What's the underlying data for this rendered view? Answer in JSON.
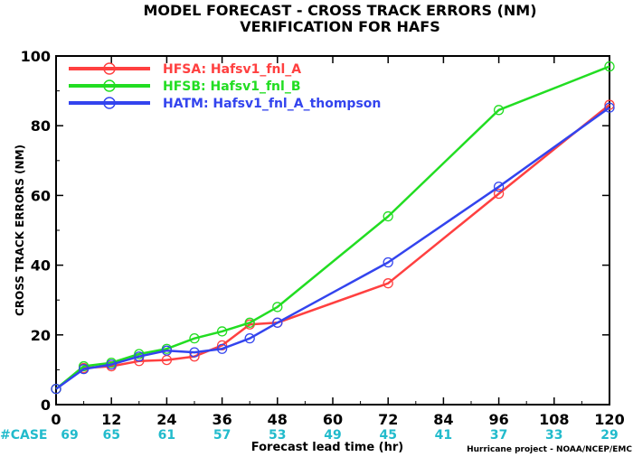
{
  "chart_data": {
    "type": "line",
    "title": "MODEL FORECAST - CROSS TRACK ERRORS (NM)",
    "subtitle": "VERIFICATION FOR HAFS",
    "xlabel": "Forecast lead time (hr)",
    "ylabel": "CROSS TRACK ERRORS (NM)",
    "xlim": [
      0,
      120
    ],
    "ylim": [
      0,
      100
    ],
    "x_ticks": [
      0,
      12,
      24,
      36,
      48,
      60,
      72,
      84,
      96,
      108,
      120
    ],
    "y_ticks": [
      0,
      20,
      40,
      60,
      80,
      100
    ],
    "grid": false,
    "legend_position": "top-left",
    "series": [
      {
        "name": "HFSA: Hafsv1_fnl_A",
        "color": "#ff4040",
        "x": [
          0,
          6,
          12,
          18,
          24,
          30,
          36,
          42,
          48,
          72,
          96,
          120
        ],
        "y": [
          4.5,
          10.5,
          11,
          12.5,
          12.8,
          13.8,
          17,
          23,
          23.5,
          34.8,
          60.5,
          86
        ]
      },
      {
        "name": "HFSB: Hafsv1_fnl_B",
        "color": "#22dd22",
        "x": [
          0,
          6,
          12,
          18,
          24,
          30,
          36,
          42,
          48,
          72,
          96,
          120
        ],
        "y": [
          4.5,
          11,
          12,
          14.5,
          16,
          19,
          21,
          23.5,
          28,
          54,
          84.5,
          97
        ]
      },
      {
        "name": "HATM: Hafsv1_fnl_A_thompson",
        "color": "#3344ee",
        "x": [
          0,
          6,
          12,
          18,
          24,
          30,
          36,
          42,
          48,
          72,
          96,
          120
        ],
        "y": [
          4.5,
          10.2,
          11.5,
          13.8,
          15.5,
          15,
          16,
          19,
          23.5,
          40.8,
          62.5,
          85.2
        ]
      }
    ],
    "cases_label": "#CASE",
    "cases": [
      {
        "x": 0,
        "n": "69"
      },
      {
        "x": 12,
        "n": "65"
      },
      {
        "x": 24,
        "n": "61"
      },
      {
        "x": 36,
        "n": "57"
      },
      {
        "x": 48,
        "n": "53"
      },
      {
        "x": 60,
        "n": "49"
      },
      {
        "x": 72,
        "n": "45"
      },
      {
        "x": 84,
        "n": "41"
      },
      {
        "x": 96,
        "n": "37"
      },
      {
        "x": 108,
        "n": "33"
      },
      {
        "x": 120,
        "n": "29"
      }
    ],
    "credit": "Hurricane project - NOAA/NCEP/EMC",
    "case_color": "#22bbcc"
  }
}
